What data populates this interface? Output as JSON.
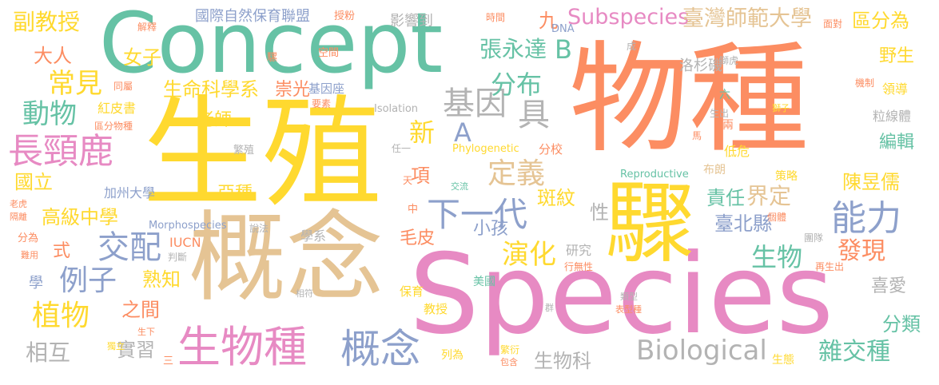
{
  "palette": {
    "green": "#66c2a5",
    "orange": "#fc8d62",
    "blue": "#8da0cb",
    "pink": "#e78ac3",
    "lime": "#a6d854",
    "yellow": "#ffd92f",
    "tan": "#e5c494",
    "gray": "#b3b3b3"
  },
  "words": [
    {
      "text": "物種",
      "color": "orange"
    },
    {
      "text": "Species",
      "color": "pink"
    },
    {
      "text": "生殖",
      "color": "yellow"
    },
    {
      "text": "Concept",
      "color": "green"
    },
    {
      "text": "概念",
      "color": "tan"
    },
    {
      "text": "驟",
      "color": "yellow"
    },
    {
      "text": "生物種",
      "color": "pink"
    },
    {
      "text": "概念",
      "color": "blue"
    },
    {
      "text": "長頸鹿",
      "color": "pink"
    },
    {
      "text": "能力",
      "color": "blue"
    },
    {
      "text": "下一代",
      "color": "blue"
    },
    {
      "text": "Biological",
      "color": "gray"
    },
    {
      "text": "定義",
      "color": "tan"
    },
    {
      "text": "Subspecies",
      "color": "pink"
    },
    {
      "text": "臺灣師範大學",
      "color": "tan"
    },
    {
      "text": "基因",
      "color": "gray"
    },
    {
      "text": "具",
      "color": "gray"
    },
    {
      "text": "交配",
      "color": "blue"
    },
    {
      "text": "例子",
      "color": "blue"
    },
    {
      "text": "植物",
      "color": "yellow"
    },
    {
      "text": "常見",
      "color": "yellow"
    },
    {
      "text": "動物",
      "color": "green"
    },
    {
      "text": "分布",
      "color": "green"
    },
    {
      "text": "張永達",
      "color": "green"
    },
    {
      "text": "B",
      "color": "green"
    },
    {
      "text": "A",
      "color": "blue"
    },
    {
      "text": "新",
      "color": "yellow"
    },
    {
      "text": "演化",
      "color": "yellow"
    },
    {
      "text": "生物",
      "color": "green"
    },
    {
      "text": "發現",
      "color": "orange"
    },
    {
      "text": "雜交種",
      "color": "green"
    },
    {
      "text": "界定",
      "color": "tan"
    },
    {
      "text": "副教授",
      "color": "yellow"
    },
    {
      "text": "大人",
      "color": "orange"
    },
    {
      "text": "女子",
      "color": "yellow"
    },
    {
      "text": "生命科學系",
      "color": "yellow"
    },
    {
      "text": "國立",
      "color": "yellow"
    },
    {
      "text": "高級中學",
      "color": "yellow"
    },
    {
      "text": "相互",
      "color": "gray"
    },
    {
      "text": "實習",
      "color": "gray"
    },
    {
      "text": "之間",
      "color": "orange"
    },
    {
      "text": "熟知",
      "color": "yellow"
    },
    {
      "text": "亞種",
      "color": "yellow"
    },
    {
      "text": "斑紋",
      "color": "yellow"
    },
    {
      "text": "臺北縣",
      "color": "blue"
    },
    {
      "text": "責任",
      "color": "green"
    },
    {
      "text": "陳昱儒",
      "color": "yellow"
    },
    {
      "text": "編輯",
      "color": "green"
    },
    {
      "text": "分類",
      "color": "green"
    },
    {
      "text": "喜愛",
      "color": "gray"
    },
    {
      "text": "區分為",
      "color": "yellow"
    },
    {
      "text": "野生",
      "color": "yellow"
    },
    {
      "text": "項",
      "color": "orange"
    },
    {
      "text": "小孩",
      "color": "blue"
    },
    {
      "text": "性",
      "color": "gray"
    },
    {
      "text": "毛皮",
      "color": "orange"
    },
    {
      "text": "生物科",
      "color": "gray"
    },
    {
      "text": "老師",
      "color": "yellow"
    },
    {
      "text": "崇光",
      "color": "orange"
    },
    {
      "text": "基因座",
      "color": "blue"
    },
    {
      "text": "九",
      "color": "orange"
    },
    {
      "text": "影響到",
      "color": "gray"
    },
    {
      "text": "國際自然保育聯盟",
      "color": "blue"
    },
    {
      "text": "授粉",
      "color": "orange"
    },
    {
      "text": "時間",
      "color": "orange"
    },
    {
      "text": "DNA",
      "color": "blue"
    },
    {
      "text": "面對",
      "color": "orange"
    },
    {
      "text": "解釋",
      "color": "orange"
    },
    {
      "text": "騾",
      "color": "orange"
    },
    {
      "text": "空間",
      "color": "orange"
    },
    {
      "text": "同屬",
      "color": "orange"
    },
    {
      "text": "要素",
      "color": "orange"
    },
    {
      "text": "紅皮書",
      "color": "yellow"
    },
    {
      "text": "區分物種",
      "color": "orange"
    },
    {
      "text": "Isolation",
      "color": "gray"
    },
    {
      "text": "Phylogenetic",
      "color": "yellow"
    },
    {
      "text": "分校",
      "color": "orange"
    },
    {
      "text": "繁殖",
      "color": "gray"
    },
    {
      "text": "任一",
      "color": "gray"
    },
    {
      "text": "天",
      "color": "orange"
    },
    {
      "text": "交流",
      "color": "green"
    },
    {
      "text": "加州大學",
      "color": "blue"
    },
    {
      "text": "Morphospecies",
      "color": "blue"
    },
    {
      "text": "IUCN",
      "color": "orange"
    },
    {
      "text": "判斷",
      "color": "gray"
    },
    {
      "text": "式",
      "color": "orange"
    },
    {
      "text": "中",
      "color": "orange"
    },
    {
      "text": "說法",
      "color": "gray"
    },
    {
      "text": "學系",
      "color": "gray"
    },
    {
      "text": "研究",
      "color": "gray"
    },
    {
      "text": "美國",
      "color": "green"
    },
    {
      "text": "保育",
      "color": "yellow"
    },
    {
      "text": "教授",
      "color": "yellow"
    },
    {
      "text": "相符",
      "color": "gray"
    },
    {
      "text": "列為",
      "color": "yellow"
    },
    {
      "text": "繁衍",
      "color": "yellow"
    },
    {
      "text": "包含",
      "color": "orange"
    },
    {
      "text": "群",
      "color": "gray"
    },
    {
      "text": "類型",
      "color": "gray"
    },
    {
      "text": "表型種",
      "color": "orange"
    },
    {
      "text": "生下",
      "color": "orange"
    },
    {
      "text": "獨立",
      "color": "yellow"
    },
    {
      "text": "三",
      "color": "orange"
    },
    {
      "text": "學",
      "color": "blue"
    },
    {
      "text": "分為",
      "color": "orange"
    },
    {
      "text": "難用",
      "color": "orange"
    },
    {
      "text": "老虎",
      "color": "orange"
    },
    {
      "text": "隔離",
      "color": "orange"
    },
    {
      "text": "洛杉磯",
      "color": "gray"
    },
    {
      "text": "成",
      "color": "gray"
    },
    {
      "text": "獅虎",
      "color": "gray"
    },
    {
      "text": "機制",
      "color": "orange"
    },
    {
      "text": "領導",
      "color": "yellow"
    },
    {
      "text": "粒線體",
      "color": "gray"
    },
    {
      "text": "生出",
      "color": "gray"
    },
    {
      "text": "六",
      "color": "green"
    },
    {
      "text": "獅子",
      "color": "yellow"
    },
    {
      "text": "馬",
      "color": "orange"
    },
    {
      "text": "兩",
      "color": "orange"
    },
    {
      "text": "低危",
      "color": "yellow"
    },
    {
      "text": "Reproductive",
      "color": "green"
    },
    {
      "text": "布朗",
      "color": "tan"
    },
    {
      "text": "策略",
      "color": "yellow"
    },
    {
      "text": "團隊",
      "color": "gray"
    },
    {
      "text": "再生出",
      "color": "orange"
    },
    {
      "text": "行無性",
      "color": "orange"
    },
    {
      "text": "個體",
      "color": "orange"
    },
    {
      "text": "生態",
      "color": "yellow"
    }
  ]
}
